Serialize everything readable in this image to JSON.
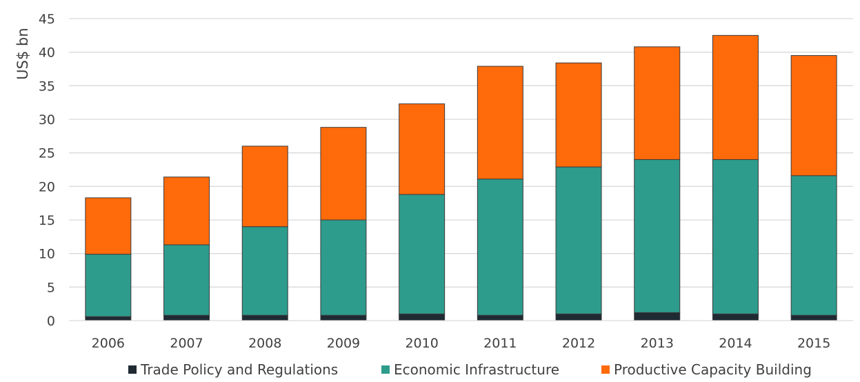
{
  "chart_data": {
    "type": "bar",
    "stacked": true,
    "title": "",
    "xlabel": "",
    "ylabel": "US$ bn",
    "ylim": [
      0,
      45
    ],
    "yticks": [
      "0",
      "5",
      "10",
      "15",
      "20",
      "25",
      "30",
      "35",
      "40",
      "45"
    ],
    "grid": true,
    "legend_position": "bottom",
    "categories": [
      "2006",
      "2007",
      "2008",
      "2009",
      "2010",
      "2011",
      "2012",
      "2013",
      "2014",
      "2015"
    ],
    "series": [
      {
        "name": "Trade Policy and Regulations",
        "color": "#1f2a33",
        "values": [
          0.6,
          0.8,
          0.8,
          0.8,
          1.0,
          0.8,
          1.0,
          1.2,
          1.0,
          0.8
        ]
      },
      {
        "name": "Economic Infrastructure",
        "color": "#2e9c8c",
        "values": [
          9.3,
          10.5,
          13.2,
          14.2,
          17.8,
          20.3,
          21.9,
          22.8,
          23.0,
          20.8
        ]
      },
      {
        "name": "Productive Capacity Building",
        "color": "#ff6a0a",
        "values": [
          8.4,
          10.1,
          12.0,
          13.8,
          13.5,
          16.8,
          15.5,
          16.8,
          18.5,
          17.9
        ]
      }
    ]
  }
}
